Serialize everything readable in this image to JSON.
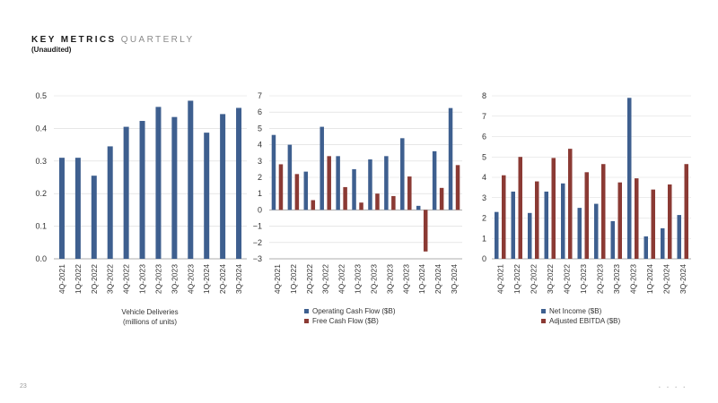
{
  "header": {
    "title_a": "KEY METRICS",
    "title_b": "QUARTERLY",
    "subtitle": "(Unaudited)"
  },
  "footer": {
    "page_number": "23",
    "dots": "• • • •"
  },
  "colors": {
    "blue": "#3e5f8f",
    "red": "#8b3a34",
    "grid": "#d9d9d9",
    "axis": "#999999"
  },
  "chart_data": [
    {
      "type": "bar",
      "caption_line1": "Vehicle Deliveries",
      "caption_line2": "(millions of units)",
      "categories": [
        "4Q-2021",
        "1Q-2022",
        "2Q-2022",
        "3Q-2022",
        "4Q-2022",
        "1Q-2023",
        "2Q-2023",
        "3Q-2023",
        "4Q-2023",
        "1Q-2024",
        "2Q-2024",
        "3Q-2024"
      ],
      "series": [
        {
          "name": "",
          "color": "#3e5f8f",
          "values": [
            0.31,
            0.31,
            0.255,
            0.345,
            0.405,
            0.423,
            0.466,
            0.435,
            0.485,
            0.387,
            0.444,
            0.463
          ]
        }
      ],
      "ylim": [
        0,
        0.5
      ],
      "yticks": [
        "0.0",
        "0.1",
        "0.2",
        "0.3",
        "0.4",
        "0.5"
      ],
      "grid": true
    },
    {
      "type": "bar",
      "categories": [
        "4Q-2021",
        "1Q-2022",
        "2Q-2022",
        "3Q-2022",
        "4Q-2022",
        "1Q-2023",
        "2Q-2023",
        "3Q-2023",
        "4Q-2023",
        "1Q-2024",
        "2Q-2024",
        "3Q-2024"
      ],
      "series": [
        {
          "name": "Operating Cash Flow ($B)",
          "color": "#3e5f8f",
          "values": [
            4.6,
            4.0,
            2.35,
            5.1,
            3.3,
            2.5,
            3.1,
            3.3,
            4.4,
            0.25,
            3.6,
            6.25
          ]
        },
        {
          "name": "Free Cash Flow ($B)",
          "color": "#8b3a34",
          "values": [
            2.8,
            2.2,
            0.6,
            3.3,
            1.4,
            0.45,
            1.0,
            0.85,
            2.05,
            -2.55,
            1.35,
            2.75
          ]
        }
      ],
      "ylim": [
        -3,
        7
      ],
      "yticks": [
        "−3",
        "−2",
        "−1",
        "0",
        "1",
        "2",
        "3",
        "4",
        "5",
        "6",
        "7"
      ],
      "grid": true,
      "legend": "bottom"
    },
    {
      "type": "bar",
      "categories": [
        "4Q-2021",
        "1Q-2022",
        "2Q-2022",
        "3Q-2022",
        "4Q-2022",
        "1Q-2023",
        "2Q-2023",
        "3Q-2023",
        "4Q-2023",
        "1Q-2024",
        "2Q-2024",
        "3Q-2024"
      ],
      "series": [
        {
          "name": "Net Income ($B)",
          "color": "#3e5f8f",
          "values": [
            2.3,
            3.3,
            2.25,
            3.3,
            3.7,
            2.5,
            2.7,
            1.85,
            7.9,
            1.1,
            1.5,
            2.15
          ]
        },
        {
          "name": "Adjusted EBITDA ($B)",
          "color": "#8b3a34",
          "values": [
            4.1,
            5.0,
            3.8,
            4.95,
            5.4,
            4.25,
            4.65,
            3.75,
            3.95,
            3.4,
            3.65,
            4.65
          ]
        }
      ],
      "ylim": [
        0,
        8
      ],
      "yticks": [
        "0",
        "1",
        "2",
        "3",
        "4",
        "5",
        "6",
        "7",
        "8"
      ],
      "grid": true,
      "legend": "bottom"
    }
  ]
}
